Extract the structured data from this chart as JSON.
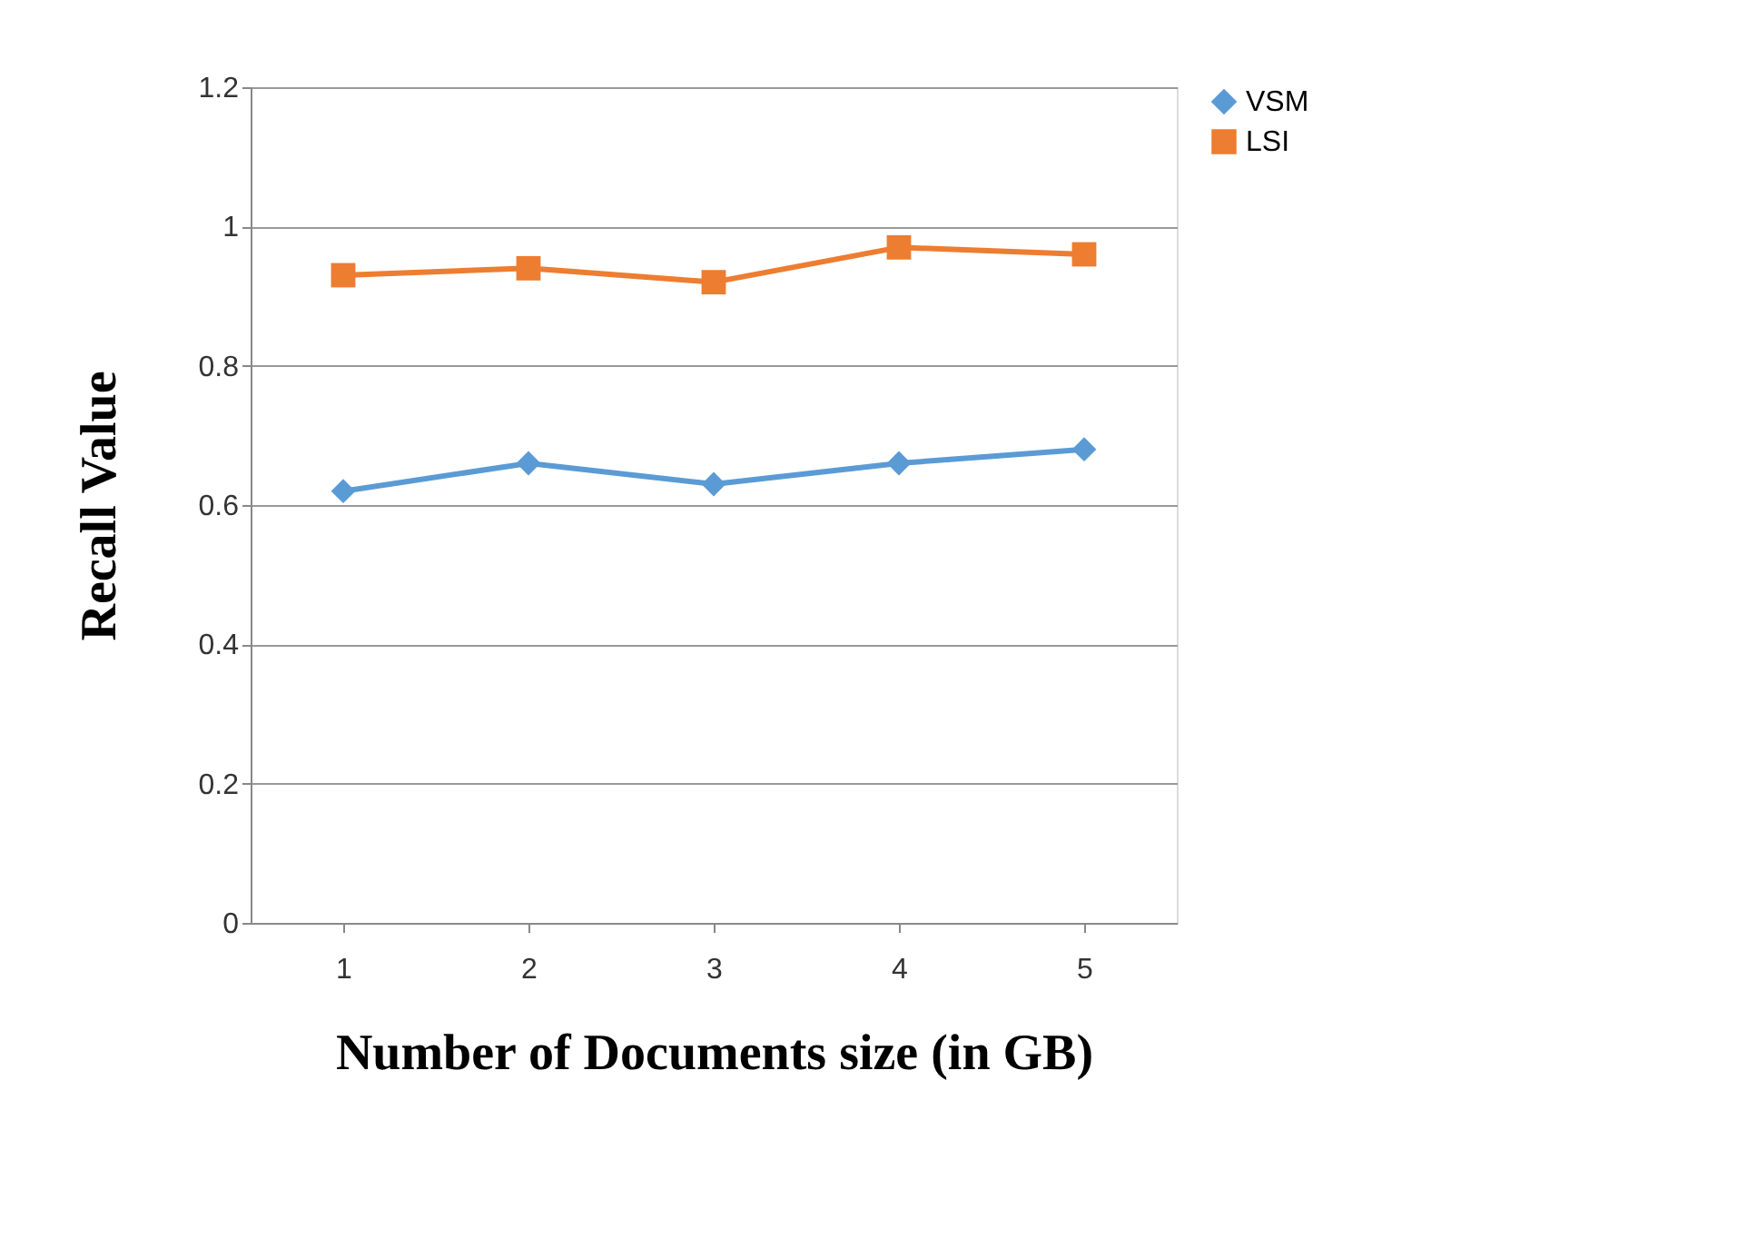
{
  "chart_data": {
    "type": "line",
    "xlabel": "Number of Documents size (in GB)",
    "ylabel": "Recall Value",
    "categories": [
      "1",
      "2",
      "3",
      "4",
      "5"
    ],
    "series": [
      {
        "name": "VSM",
        "color": "#5b9bd5",
        "marker": "diamond",
        "values": [
          0.62,
          0.66,
          0.63,
          0.66,
          0.68
        ]
      },
      {
        "name": "LSI",
        "color": "#ed7d31",
        "marker": "square",
        "values": [
          0.93,
          0.94,
          0.92,
          0.97,
          0.96
        ]
      }
    ],
    "ylim": [
      0,
      1.2
    ],
    "yticks": [
      0,
      0.2,
      0.4,
      0.6,
      0.8,
      1,
      1.2
    ],
    "grid": "y",
    "legend": "right",
    "line_style": "solid"
  }
}
